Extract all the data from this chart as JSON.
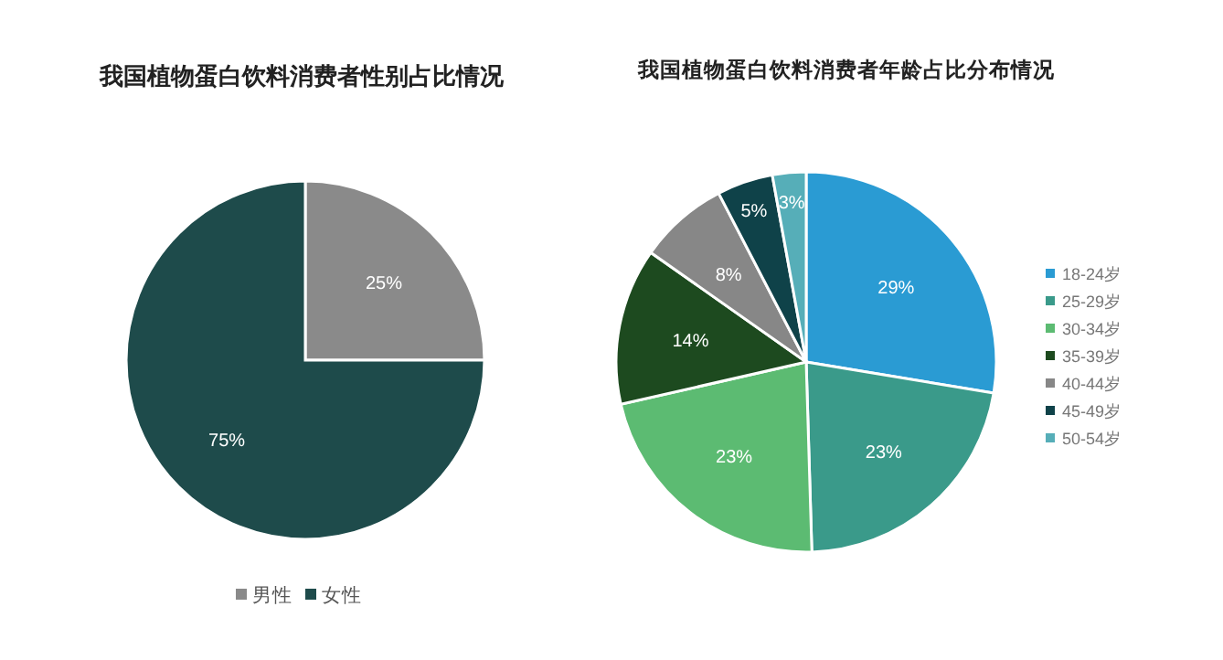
{
  "chart_data": [
    {
      "type": "pie",
      "title": "我国植物蛋白饮料消费者性别占比情况",
      "categories": [
        "男性",
        "女性"
      ],
      "values": [
        25,
        75
      ],
      "colors": [
        "#8a8a8a",
        "#1e4b4b"
      ],
      "value_labels": [
        "25%",
        "75%"
      ],
      "legend": "bottom"
    },
    {
      "type": "pie",
      "title": "我国植物蛋白饮料消费者年龄占比分布情况",
      "categories": [
        "18-24岁",
        "25-29岁",
        "30-34岁",
        "35-39岁",
        "40-44岁",
        "45-49岁",
        "50-54岁"
      ],
      "values": [
        29,
        23,
        23,
        14,
        8,
        5,
        3
      ],
      "colors": [
        "#2a9bd3",
        "#3a9a8a",
        "#5cbb72",
        "#1d4a1f",
        "#878787",
        "#0f4249",
        "#56aeb8"
      ],
      "value_labels": [
        "29%",
        "23%",
        "23%",
        "14%",
        "8%",
        "5%",
        "3%"
      ],
      "legend": "right"
    }
  ]
}
